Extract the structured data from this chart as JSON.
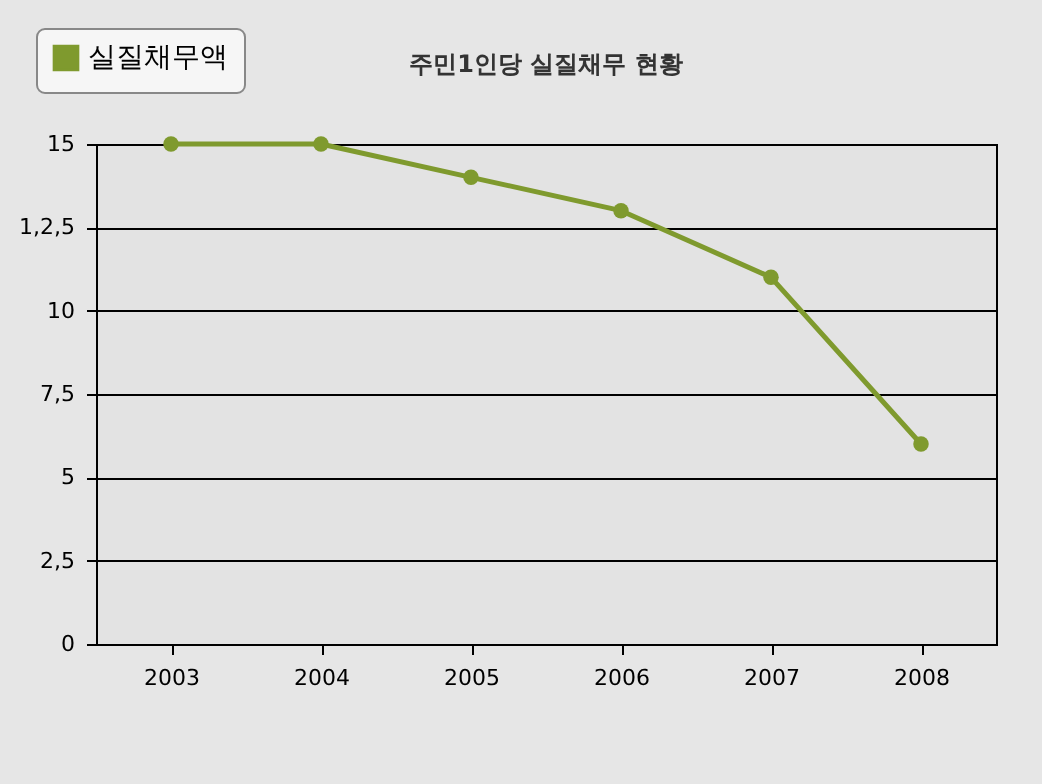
{
  "chart_data": {
    "type": "line",
    "title": "주민1인당 실질채무 현황",
    "categories": [
      "2003",
      "2004",
      "2005",
      "2006",
      "2007",
      "2008"
    ],
    "series": [
      {
        "name": "실질채무액",
        "color": "#7f9a2e",
        "values": [
          15,
          15,
          14,
          13,
          11,
          6
        ]
      }
    ],
    "ylim": [
      0,
      15
    ],
    "yticks": [
      0,
      {
        "value": 2.5,
        "label": "2,5"
      },
      5,
      {
        "value": 7.5,
        "label": "7,5"
      },
      10,
      {
        "value": 12.5,
        "label": "1,2,5"
      },
      15
    ],
    "grid": "y",
    "legend": "top left",
    "marker": "circle",
    "line_style": "solid"
  }
}
